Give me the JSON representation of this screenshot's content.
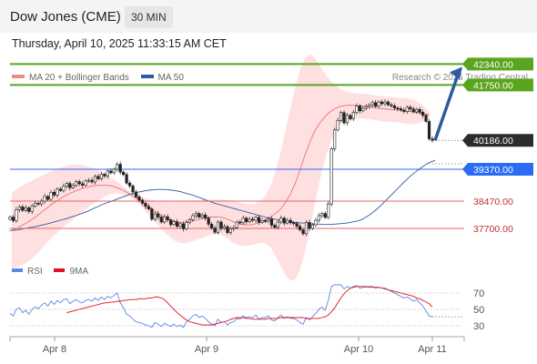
{
  "header": {
    "title": "Dow Jones (CME)",
    "timeframe": "30 MIN",
    "datetime": "Thursday, April 10, 2025 11:33:15 AM CET"
  },
  "legend": {
    "ma20_label": "MA 20 + Bollinger Bands",
    "ma50_label": "MA 50"
  },
  "credit": "Research © 2025 Trading Central",
  "rsi_legend": {
    "rsi_label": "RSI",
    "ma_label": "9MA"
  },
  "colors": {
    "resistance": "#5aa51e",
    "support": "#e8636b",
    "current": "#2c2c2c",
    "pivot": "#2a6df4",
    "ma50": "#2f5a9e",
    "band": "#ffd6d6",
    "ma20": "#e8636b",
    "rsi": "#5b86e6",
    "arrow": "#2f5a9e"
  },
  "chart_data": [
    {
      "type": "line",
      "title": "Dow Jones (CME)",
      "x_labels": [
        "Apr 8",
        "Apr 9",
        "Apr 10",
        "Apr 11"
      ],
      "y_ticks_shown": [
        42340,
        41750,
        40186,
        39370,
        38470,
        37700
      ],
      "levels": [
        {
          "name": "resistance-2",
          "label": "42340.00",
          "value": 42340,
          "kind": "resistance"
        },
        {
          "name": "resistance-1",
          "label": "41750.00",
          "value": 41750,
          "kind": "resistance"
        },
        {
          "name": "last-price",
          "label": "40186.00",
          "value": 40186,
          "kind": "current"
        },
        {
          "name": "pivot",
          "label": "39370.00",
          "value": 39370,
          "kind": "pivot"
        },
        {
          "name": "support-1",
          "label": "38470.00",
          "value": 38470,
          "kind": "support"
        },
        {
          "name": "support-2",
          "label": "37700.00",
          "value": 37700,
          "kind": "support"
        }
      ],
      "price_close": [
        38020,
        37920,
        38230,
        38310,
        38210,
        38280,
        38180,
        38330,
        38410,
        38390,
        38470,
        38600,
        38520,
        38720,
        38640,
        38810,
        38770,
        38890,
        38970,
        38850,
        38910,
        39020,
        38960,
        38920,
        39040,
        39060,
        39010,
        39170,
        39100,
        39230,
        39180,
        39320,
        39270,
        39370,
        39510,
        39290,
        39220,
        38980,
        38900,
        38730,
        38590,
        38500,
        38410,
        38320,
        38250,
        37960,
        38110,
        38020,
        37880,
        38030,
        37940,
        37810,
        37890,
        37760,
        37830,
        37690,
        37870,
        37950,
        38060,
        38120,
        38020,
        38080,
        37990,
        37820,
        37710,
        37590,
        37880,
        37700,
        37750,
        37580,
        37690,
        37720,
        37880,
        37860,
        37990,
        37890,
        37960,
        37930,
        38010,
        37870,
        37920,
        37910,
        37960,
        37790,
        37730,
        37880,
        37990,
        37850,
        37930,
        37860,
        37840,
        37760,
        37660,
        37550,
        37870,
        37700,
        37800,
        37930,
        38060,
        38120,
        38010,
        38390,
        39950,
        40480,
        40750,
        40970,
        40680,
        40890,
        40790,
        40980,
        41160,
        41020,
        41090,
        41140,
        41190,
        41250,
        41150,
        41270,
        41220,
        41270,
        41190,
        41160,
        41100,
        41080,
        41040,
        41000,
        41120,
        41070,
        40990,
        41060,
        40980,
        40890,
        40720,
        40230,
        40186
      ],
      "ma20": [
        37650,
        37700,
        37780,
        37860,
        37950,
        38050,
        38160,
        38270,
        38380,
        38470,
        38560,
        38640,
        38710,
        38770,
        38820,
        38860,
        38890,
        38910,
        38920,
        38920,
        38900,
        38860,
        38800,
        38730,
        38650,
        38560,
        38460,
        38360,
        38260,
        38170,
        38080,
        38000,
        37940,
        37890,
        37870,
        37880,
        37900,
        37930,
        37960,
        37990,
        38020,
        38030,
        38020,
        37980,
        37920,
        37860,
        37820,
        37800,
        37800,
        37830,
        37880,
        37950,
        38030,
        38120,
        38240,
        38420,
        38660,
        38980,
        39370,
        39800,
        40170,
        40470,
        40690,
        40860,
        40990,
        41080,
        41140,
        41170,
        41180,
        41170,
        41160,
        41150,
        41130,
        41110,
        41090,
        41070,
        41060,
        41050,
        41040,
        41020,
        41000,
        40980,
        40960,
        40930,
        40900
      ],
      "ma20_upper": [
        38720,
        38800,
        38900,
        38980,
        39050,
        39120,
        39190,
        39260,
        39320,
        39380,
        39430,
        39470,
        39500,
        39500,
        39490,
        39460,
        39420,
        39370,
        39300,
        39220,
        39130,
        39030,
        38930,
        38830,
        38740,
        38660,
        38600,
        38550,
        38510,
        38480,
        38460,
        38450,
        38450,
        38450,
        38460,
        38470,
        38480,
        38490,
        38500,
        38510,
        38520,
        38520,
        38520,
        38510,
        38490,
        38460,
        38420,
        38390,
        38380,
        38400,
        38470,
        38620,
        38890,
        39300,
        39830,
        40450,
        41100,
        41700,
        42200,
        42520,
        42630,
        42500,
        42280,
        42060,
        41880,
        41740,
        41640,
        41580,
        41540,
        41520,
        41510,
        41500,
        41480,
        41460,
        41440,
        41420,
        41410,
        41400,
        41390,
        41380,
        41360,
        41320,
        41240,
        41130,
        40990
      ],
      "ma20_lower": [
        36580,
        36600,
        36660,
        36740,
        36850,
        36980,
        37130,
        37280,
        37440,
        37560,
        37690,
        37810,
        37920,
        38040,
        38150,
        38260,
        38360,
        38450,
        38540,
        38620,
        38670,
        38690,
        38670,
        38630,
        38560,
        38460,
        38320,
        38170,
        38010,
        37860,
        37700,
        37550,
        37430,
        37330,
        37280,
        37290,
        37320,
        37370,
        37420,
        37470,
        37520,
        37540,
        37520,
        37450,
        37350,
        37260,
        37220,
        37210,
        37220,
        37260,
        37290,
        37280,
        37170,
        36940,
        36650,
        36390,
        36220,
        36260,
        36540,
        37080,
        37710,
        38440,
        39100,
        39660,
        40100,
        40420,
        40640,
        40760,
        40820,
        40820,
        40810,
        40800,
        40780,
        40760,
        40740,
        40720,
        40710,
        40700,
        40690,
        40660,
        40640,
        40640,
        40680,
        40730,
        40810
      ],
      "ma50": [
        37640,
        37650,
        37660,
        37680,
        37700,
        37720,
        37740,
        37760,
        37790,
        37810,
        37840,
        37870,
        37900,
        37930,
        37960,
        37990,
        38030,
        38060,
        38100,
        38140,
        38180,
        38230,
        38280,
        38330,
        38380,
        38420,
        38460,
        38500,
        38540,
        38580,
        38620,
        38660,
        38690,
        38720,
        38740,
        38760,
        38780,
        38790,
        38800,
        38800,
        38800,
        38790,
        38780,
        38760,
        38740,
        38710,
        38680,
        38650,
        38610,
        38570,
        38530,
        38490,
        38450,
        38410,
        38380,
        38350,
        38320,
        38290,
        38260,
        38230,
        38200,
        38170,
        38140,
        38110,
        38080,
        38050,
        38020,
        37990,
        37970,
        37950,
        37930,
        37910,
        37890,
        37880,
        37870,
        37860,
        37850,
        37840,
        37830,
        37820,
        37820,
        37810,
        37810,
        37810,
        37820,
        37830,
        37840,
        37850,
        37870,
        37890,
        37910,
        37950,
        38010,
        38080,
        38160,
        38250,
        38350,
        38460,
        38570,
        38680,
        38790,
        38900,
        39010,
        39110,
        39210,
        39300,
        39380,
        39460,
        39530,
        39580,
        39620
      ],
      "arrow_target": 42340
    },
    {
      "type": "line",
      "title": "RSI",
      "y_ticks": [
        70,
        50,
        30
      ],
      "rsi": [
        45,
        42,
        50,
        52,
        46,
        49,
        44,
        50,
        53,
        51,
        55,
        58,
        54,
        60,
        56,
        61,
        58,
        62,
        63,
        57,
        60,
        62,
        59,
        58,
        61,
        62,
        60,
        64,
        61,
        65,
        62,
        66,
        64,
        67,
        70,
        58,
        52,
        44,
        42,
        38,
        35,
        34,
        33,
        31,
        30,
        28,
        34,
        32,
        29,
        33,
        31,
        29,
        32,
        29,
        31,
        28,
        35,
        38,
        42,
        44,
        40,
        42,
        39,
        35,
        32,
        30,
        38,
        34,
        35,
        31,
        34,
        35,
        39,
        38,
        42,
        40,
        41,
        40,
        43,
        38,
        40,
        40,
        42,
        37,
        36,
        40,
        43,
        39,
        41,
        39,
        39,
        37,
        34,
        32,
        40,
        37,
        41,
        45,
        50,
        53,
        49,
        61,
        78,
        80,
        80,
        80,
        75,
        78,
        76,
        78,
        79,
        76,
        77,
        77,
        78,
        78,
        76,
        77,
        76,
        76,
        74,
        72,
        70,
        68,
        66,
        64,
        65,
        63,
        60,
        62,
        58,
        54,
        48,
        42,
        41
      ],
      "rsi_ma": [
        46,
        47,
        48,
        49,
        50,
        51,
        52,
        53,
        54,
        55,
        56,
        57,
        58,
        58,
        59,
        59,
        60,
        60,
        61,
        61,
        62,
        62,
        62,
        63,
        63,
        63,
        64,
        64,
        65,
        65,
        64,
        62,
        58,
        54,
        50,
        46,
        43,
        40,
        37,
        35,
        34,
        33,
        32,
        31,
        31,
        31,
        31,
        32,
        33,
        34,
        35,
        36,
        38,
        39,
        40,
        40,
        40,
        39,
        39,
        38,
        38,
        38,
        38,
        38,
        39,
        39,
        39,
        39,
        40,
        40,
        40,
        40,
        40,
        40,
        40,
        40,
        39,
        39,
        39,
        39,
        39,
        40,
        41,
        43,
        47,
        52,
        58,
        64,
        69,
        73,
        76,
        77,
        78,
        78,
        78,
        78,
        77,
        77,
        77,
        77,
        76,
        75,
        74,
        73,
        72,
        71,
        70,
        69,
        68,
        67,
        66,
        64,
        63,
        61,
        59,
        57,
        53
      ]
    }
  ]
}
